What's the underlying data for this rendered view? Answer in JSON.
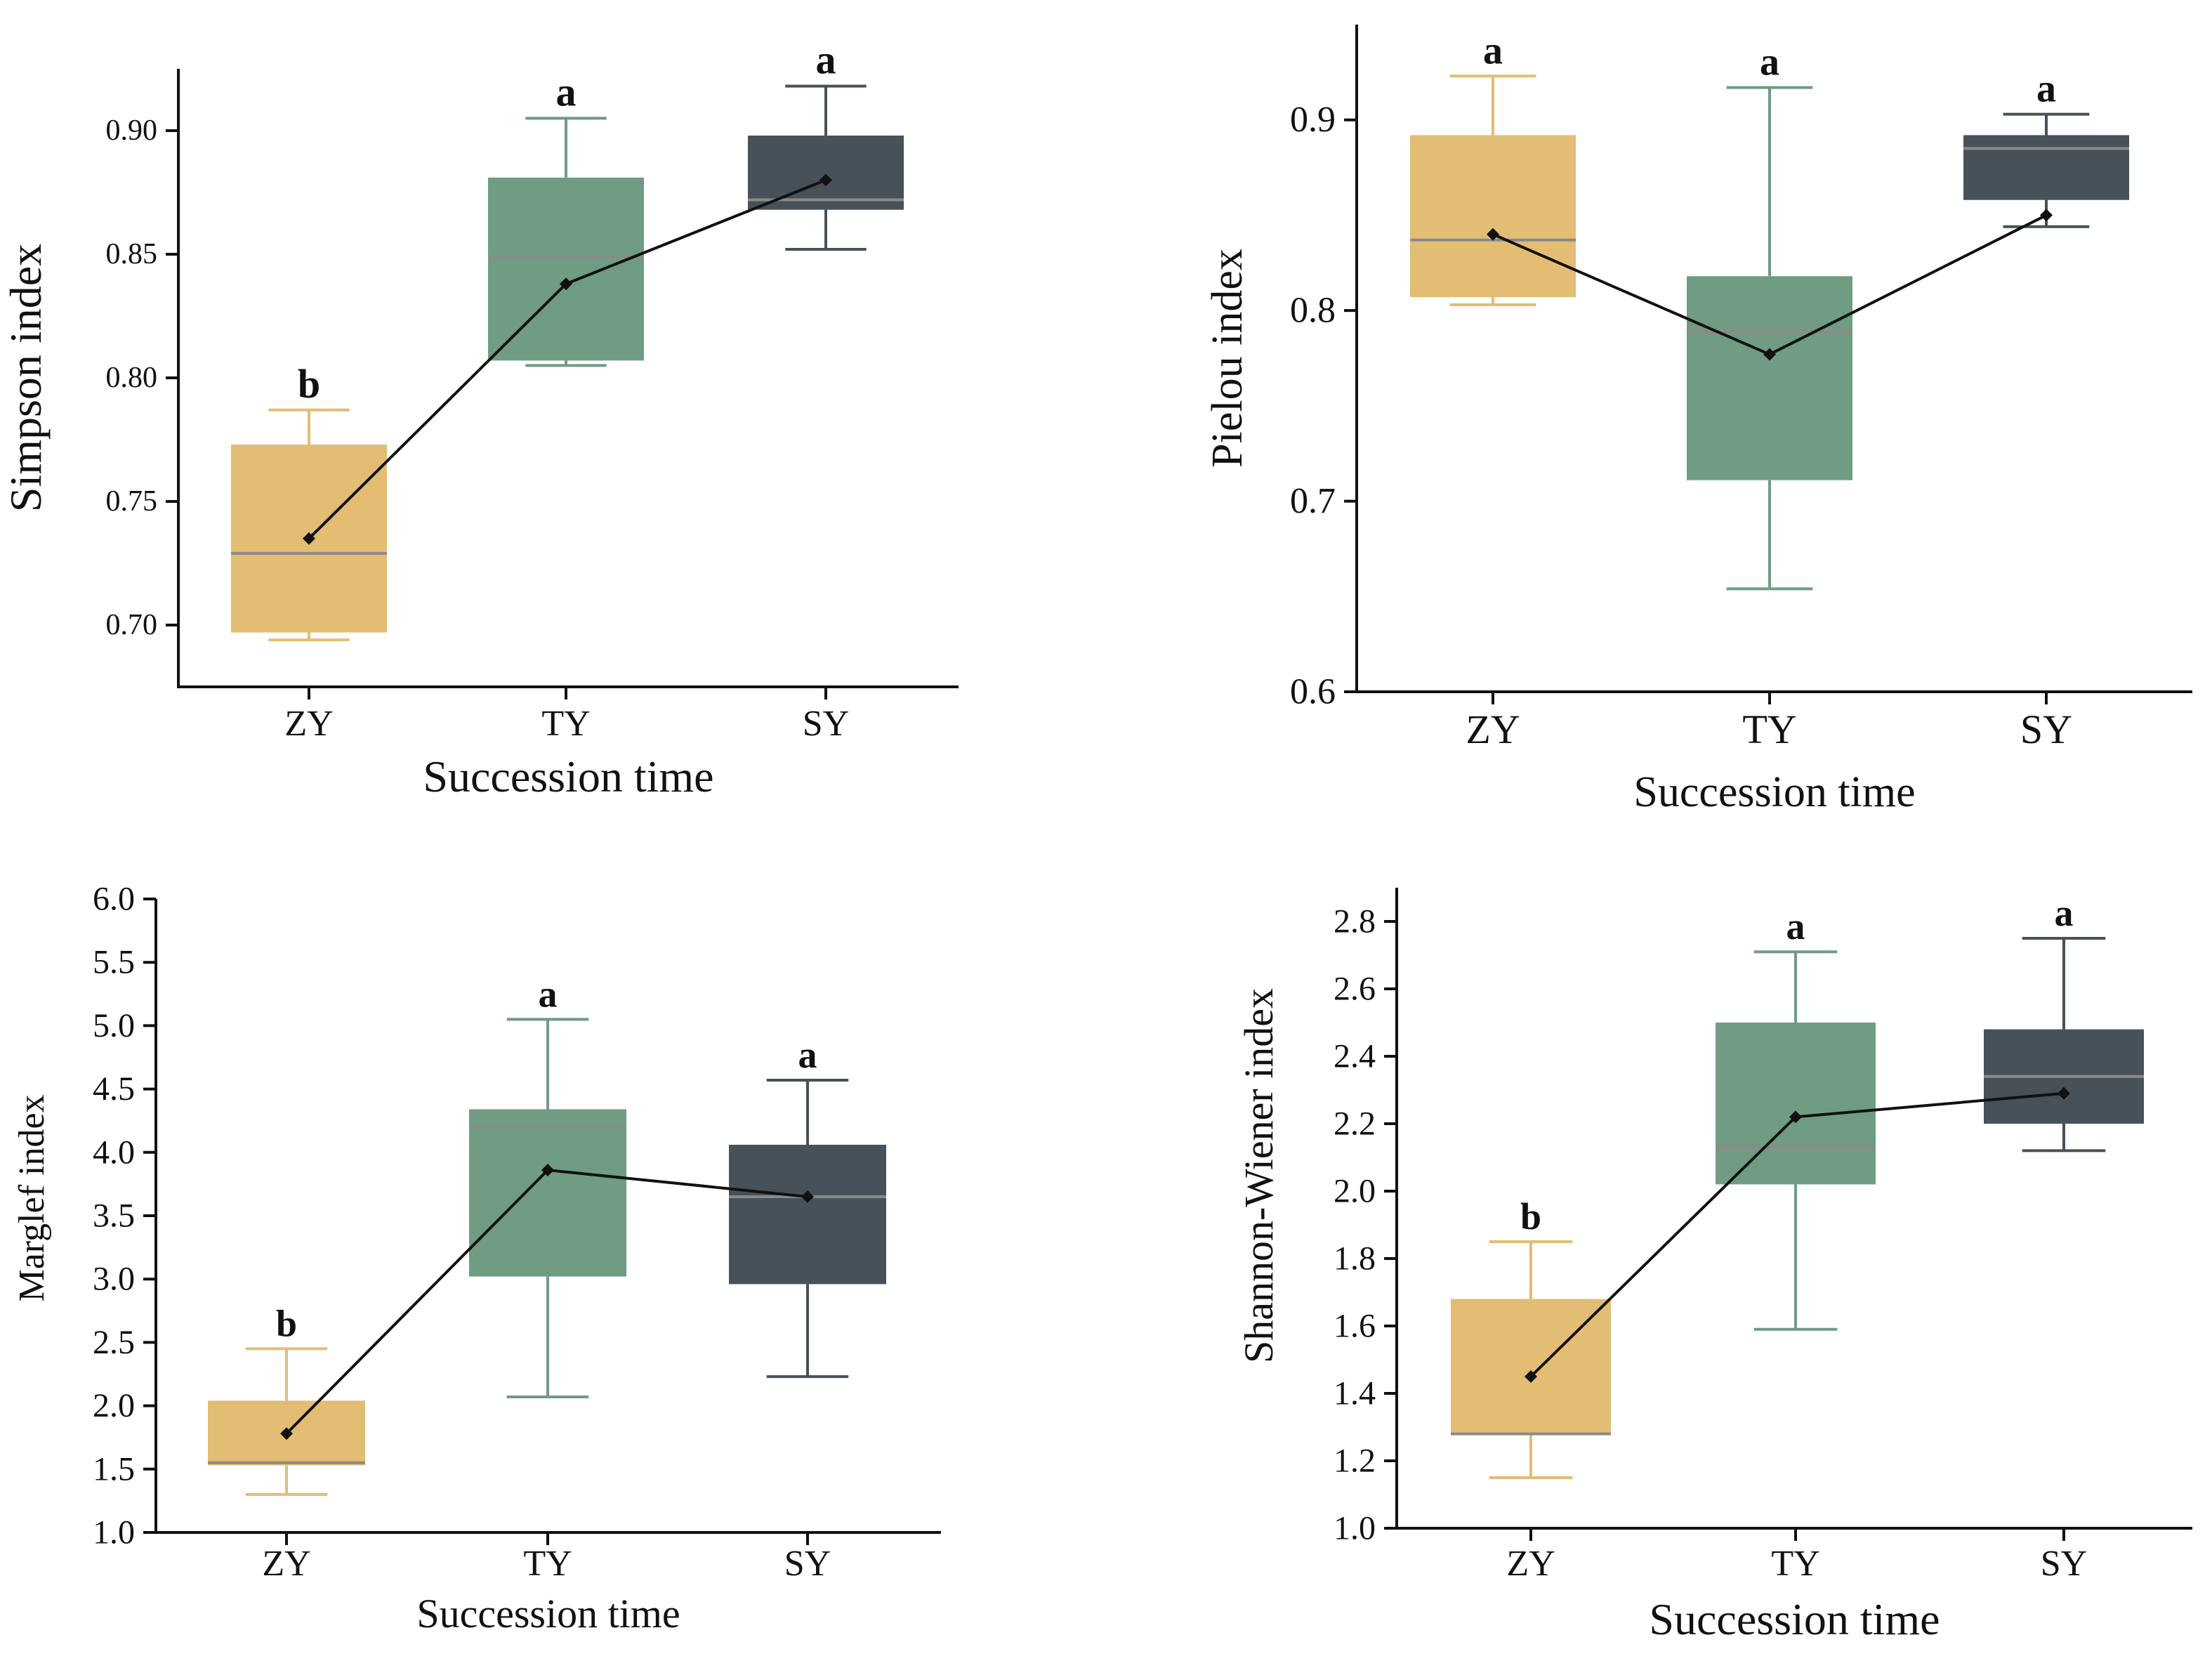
{
  "chart_data": [
    {
      "type": "box",
      "ylabel": "Simpson index",
      "xlabel": "Succession time",
      "categories": [
        "ZY",
        "TY",
        "SY"
      ],
      "ylim": [
        0.675,
        0.925
      ],
      "yticks": [
        0.7,
        0.75,
        0.8,
        0.85,
        0.9
      ],
      "tick_labels": [
        "0.70",
        "0.75",
        "0.80",
        "0.85",
        "0.90"
      ],
      "colors": [
        "#e2bd73",
        "#6f9c82",
        "#475159"
      ],
      "boxes": [
        {
          "whisker_low": 0.694,
          "q1": 0.697,
          "median": 0.729,
          "q3": 0.773,
          "whisker_high": 0.787
        },
        {
          "whisker_low": 0.805,
          "q1": 0.807,
          "median": 0.849,
          "q3": 0.881,
          "whisker_high": 0.905
        },
        {
          "whisker_low": 0.852,
          "q1": 0.868,
          "median": 0.872,
          "q3": 0.898,
          "whisker_high": 0.918
        }
      ],
      "means": [
        0.735,
        0.838,
        0.88
      ],
      "significance": [
        "b",
        "a",
        "a"
      ]
    },
    {
      "type": "box",
      "ylabel": "Pielou index",
      "xlabel": "Succession time",
      "categories": [
        "ZY",
        "TY",
        "SY"
      ],
      "ylim": [
        0.6,
        0.95
      ],
      "yticks": [
        0.6,
        0.7,
        0.8,
        0.9
      ],
      "tick_labels": [
        "0.6",
        "0.7",
        "0.8",
        "0.9"
      ],
      "colors": [
        "#e2bd73",
        "#6f9c82",
        "#475159"
      ],
      "boxes": [
        {
          "whisker_low": 0.803,
          "q1": 0.807,
          "median": 0.837,
          "q3": 0.892,
          "whisker_high": 0.923
        },
        {
          "whisker_low": 0.654,
          "q1": 0.711,
          "median": 0.789,
          "q3": 0.818,
          "whisker_high": 0.917
        },
        {
          "whisker_low": 0.844,
          "q1": 0.858,
          "median": 0.885,
          "q3": 0.892,
          "whisker_high": 0.903
        }
      ],
      "means": [
        0.84,
        0.777,
        0.85
      ],
      "significance": [
        "a",
        "a",
        "a"
      ]
    },
    {
      "type": "box",
      "ylabel": "Marglef index",
      "xlabel": "Succession time",
      "categories": [
        "ZY",
        "TY",
        "SY"
      ],
      "ylim": [
        1.0,
        6.0
      ],
      "yticks": [
        1.0,
        1.5,
        2.0,
        2.5,
        3.0,
        3.5,
        4.0,
        4.5,
        5.0,
        5.5,
        6.0
      ],
      "tick_labels": [
        "1.0",
        "1.5",
        "2.0",
        "2.5",
        "3.0",
        "3.5",
        "4.0",
        "4.5",
        "5.0",
        "5.5",
        "6.0"
      ],
      "colors": [
        "#e2bd73",
        "#6f9c82",
        "#475159"
      ],
      "boxes": [
        {
          "whisker_low": 1.3,
          "q1": 1.53,
          "median": 1.55,
          "q3": 2.04,
          "whisker_high": 2.45
        },
        {
          "whisker_low": 2.07,
          "q1": 3.02,
          "median": 4.2,
          "q3": 4.34,
          "whisker_high": 5.05
        },
        {
          "whisker_low": 2.23,
          "q1": 2.96,
          "median": 3.65,
          "q3": 4.06,
          "whisker_high": 4.57
        }
      ],
      "means": [
        1.78,
        3.86,
        3.65
      ],
      "significance": [
        "b",
        "a",
        "a"
      ]
    },
    {
      "type": "box",
      "ylabel": "Shannon-Wiener index",
      "xlabel": "Succession time",
      "categories": [
        "ZY",
        "TY",
        "SY"
      ],
      "ylim": [
        1.0,
        2.9
      ],
      "yticks": [
        1.0,
        1.2,
        1.4,
        1.6,
        1.8,
        2.0,
        2.2,
        2.4,
        2.6,
        2.8
      ],
      "tick_labels": [
        "1.0",
        "1.2",
        "1.4",
        "1.6",
        "1.8",
        "2.0",
        "2.2",
        "2.4",
        "2.6",
        "2.8"
      ],
      "colors": [
        "#e2bd73",
        "#6f9c82",
        "#475159"
      ],
      "boxes": [
        {
          "whisker_low": 1.15,
          "q1": 1.28,
          "median": 1.28,
          "q3": 1.68,
          "whisker_high": 1.85
        },
        {
          "whisker_low": 1.59,
          "q1": 2.02,
          "median": 2.13,
          "q3": 2.5,
          "whisker_high": 2.71
        },
        {
          "whisker_low": 2.12,
          "q1": 2.2,
          "median": 2.34,
          "q3": 2.48,
          "whisker_high": 2.75
        }
      ],
      "means": [
        1.45,
        2.22,
        2.29
      ],
      "significance": [
        "b",
        "a",
        "a"
      ]
    }
  ]
}
